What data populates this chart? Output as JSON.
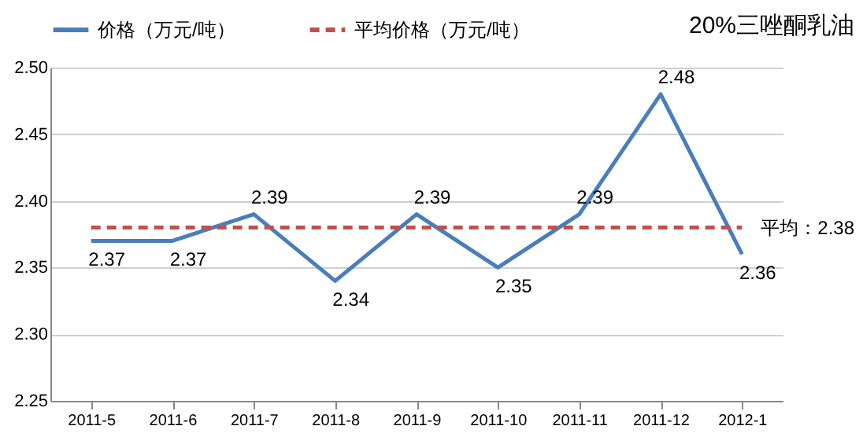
{
  "chart_data": {
    "type": "line",
    "title": "20%三唑酮乳油",
    "categories": [
      "2011-5",
      "2011-6",
      "2011-7",
      "2011-8",
      "2011-9",
      "2011-10",
      "2011-11",
      "2011-12",
      "2012-1"
    ],
    "series": [
      {
        "name": "价格（万元/吨）",
        "color": "#4a7ebb",
        "line_style": "solid",
        "data_labels": true,
        "values": [
          2.37,
          2.37,
          2.39,
          2.34,
          2.39,
          2.35,
          2.39,
          2.48,
          2.36
        ]
      },
      {
        "name": "平均价格（万元/吨）",
        "color": "#c0504d",
        "line_style": "dashed",
        "values": [
          2.38,
          2.38,
          2.38,
          2.38,
          2.38,
          2.38,
          2.38,
          2.38,
          2.38
        ]
      }
    ],
    "annotations": [
      {
        "text": "平均：2.38",
        "x": "2012-1",
        "y": 2.38
      }
    ],
    "ylim": [
      2.25,
      2.5
    ],
    "yticks": [
      2.25,
      {
        "value": 2.3,
        "label": "2.30"
      },
      2.35,
      {
        "value": 2.4,
        "label": "2.40"
      },
      2.45,
      {
        "value": 2.5,
        "label": "2.50"
      }
    ],
    "grid": "y",
    "legend": "top left",
    "marker": "none"
  }
}
